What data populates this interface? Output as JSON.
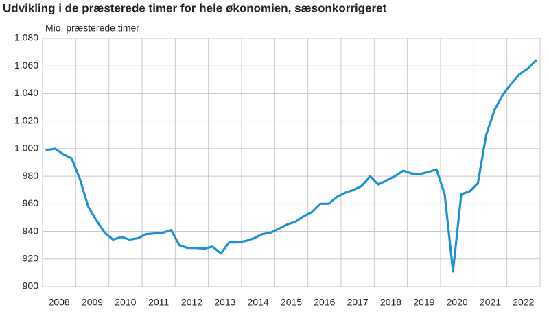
{
  "chart_data": {
    "type": "line",
    "title": "Udvikling i de præsterede timer for hele økonomien, sæsonkorrigeret",
    "y_label": "Mio. præsterede timer",
    "categories": [
      "2008",
      null,
      null,
      null,
      "2009",
      null,
      null,
      null,
      "2010",
      null,
      null,
      null,
      "2011",
      null,
      null,
      null,
      "2012",
      null,
      null,
      null,
      "2013",
      null,
      null,
      null,
      "2014",
      null,
      null,
      null,
      "2015",
      null,
      null,
      null,
      "2016",
      null,
      null,
      null,
      "2017",
      null,
      null,
      null,
      "2018",
      null,
      null,
      null,
      "2019",
      null,
      null,
      null,
      "2020",
      null,
      null,
      null,
      "2021",
      null,
      null,
      null,
      "2022",
      null,
      null,
      null
    ],
    "series": [
      {
        "name": "Præsterede timer",
        "color": "#1b92d4",
        "values": [
          999,
          1000,
          996,
          993,
          978,
          958,
          948,
          939,
          934,
          936,
          934,
          935,
          938,
          938.5,
          939,
          941,
          930,
          928,
          928,
          927.5,
          929,
          924,
          932,
          932,
          933,
          935,
          938,
          939,
          942,
          945,
          947,
          951,
          954,
          960,
          960,
          965,
          968,
          970,
          973,
          980,
          974,
          977,
          980,
          984,
          982,
          981.5,
          983,
          985,
          967,
          911,
          967,
          969,
          975,
          1010,
          1028,
          1039,
          1047,
          1054,
          1058,
          1064
        ]
      }
    ],
    "ylim": [
      900,
      1080
    ],
    "yticks": [
      900,
      920,
      940,
      960,
      980,
      {
        "value": 1000,
        "label": "1.000"
      },
      {
        "value": 1020,
        "label": "1.020"
      },
      {
        "value": 1040,
        "label": "1.040"
      },
      {
        "value": 1060,
        "label": "1.060"
      },
      {
        "value": 1080,
        "label": "1.080"
      }
    ],
    "grid": true
  }
}
